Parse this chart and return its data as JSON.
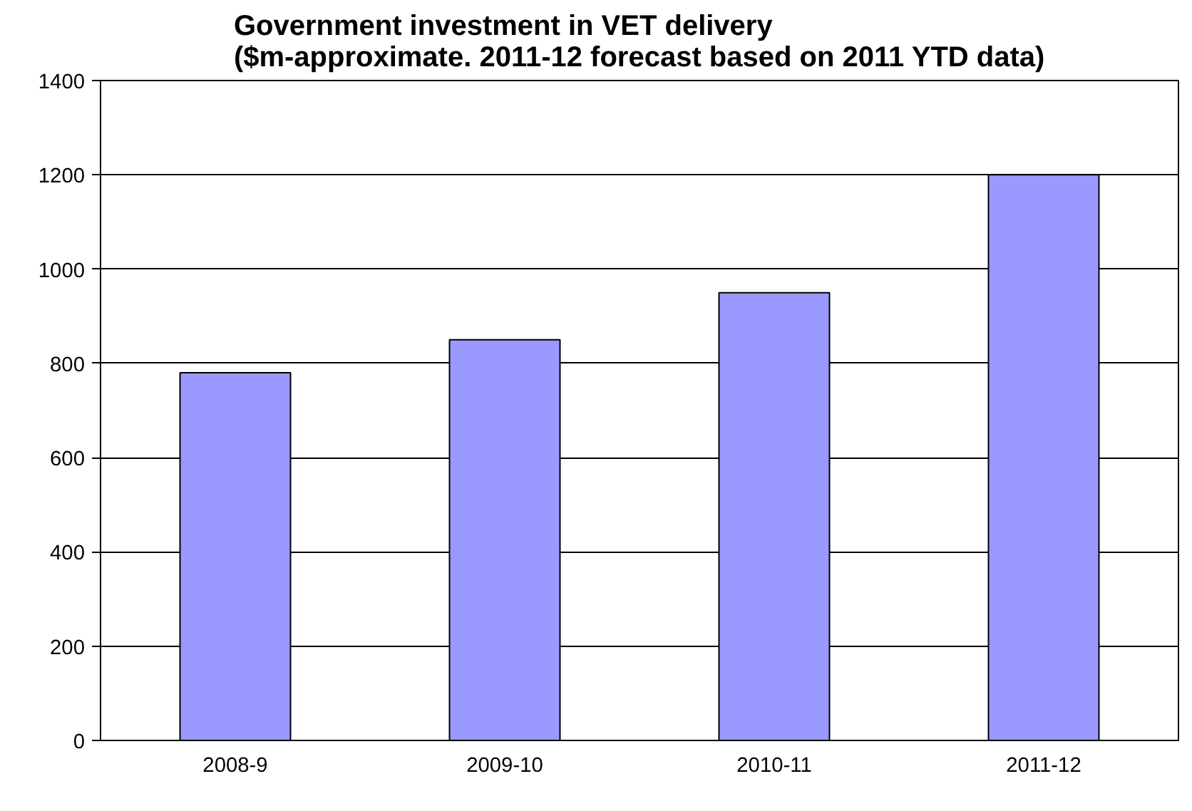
{
  "chart_data": {
    "type": "bar",
    "title": "Government investment in VET delivery\n($m-approximate. 2011-12 forecast based on 2011 YTD data)",
    "categories": [
      "2008-9",
      "2009-10",
      "2010-11",
      "2011-12"
    ],
    "values": [
      780,
      850,
      950,
      1200
    ],
    "color": "#9999ff",
    "ylim": [
      0,
      1400
    ],
    "yticks": [
      0,
      200,
      400,
      600,
      800,
      1000,
      1200,
      1400
    ],
    "grid": "y"
  }
}
